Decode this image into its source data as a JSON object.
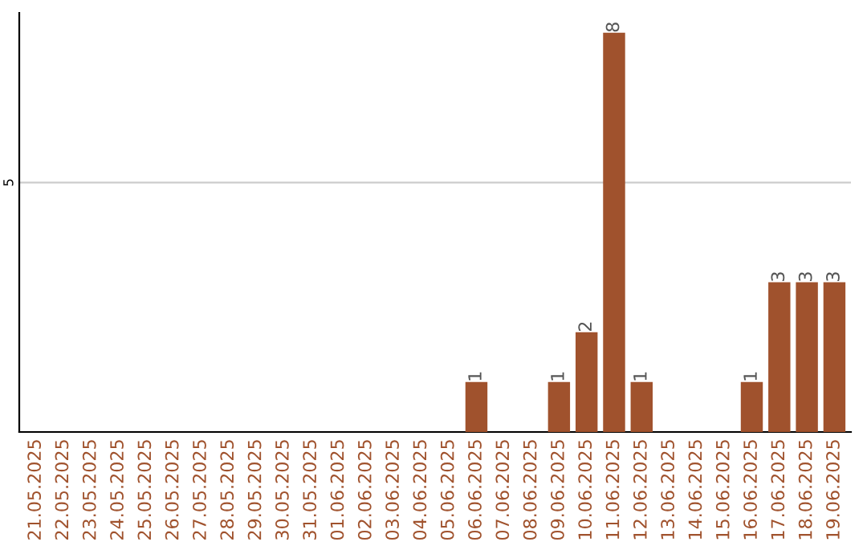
{
  "chart_data": {
    "type": "bar",
    "ylim": [
      0,
      8.4
    ],
    "categories": [
      "21.05.2025",
      "22.05.2025",
      "23.05.2025",
      "24.05.2025",
      "25.05.2025",
      "26.05.2025",
      "27.05.2025",
      "28.05.2025",
      "29.05.2025",
      "30.05.2025",
      "31.05.2025",
      "01.06.2025",
      "02.06.2025",
      "03.06.2025",
      "04.06.2025",
      "05.06.2025",
      "06.06.2025",
      "07.06.2025",
      "08.06.2025",
      "09.06.2025",
      "10.06.2025",
      "11.06.2025",
      "12.06.2025",
      "13.06.2025",
      "14.06.2025",
      "15.06.2025",
      "16.06.2025",
      "17.06.2025",
      "18.06.2025",
      "19.06.2025"
    ],
    "values": [
      null,
      null,
      null,
      null,
      null,
      null,
      null,
      null,
      null,
      null,
      null,
      null,
      null,
      null,
      null,
      null,
      1,
      null,
      null,
      1,
      2,
      8,
      1,
      null,
      null,
      null,
      1,
      3,
      3,
      3
    ],
    "data_labels": true,
    "color": "#a0522d",
    "ref_lines": [
      {
        "axis": "y",
        "value": 5,
        "label": "5",
        "color": "#cccccc"
      }
    ]
  }
}
